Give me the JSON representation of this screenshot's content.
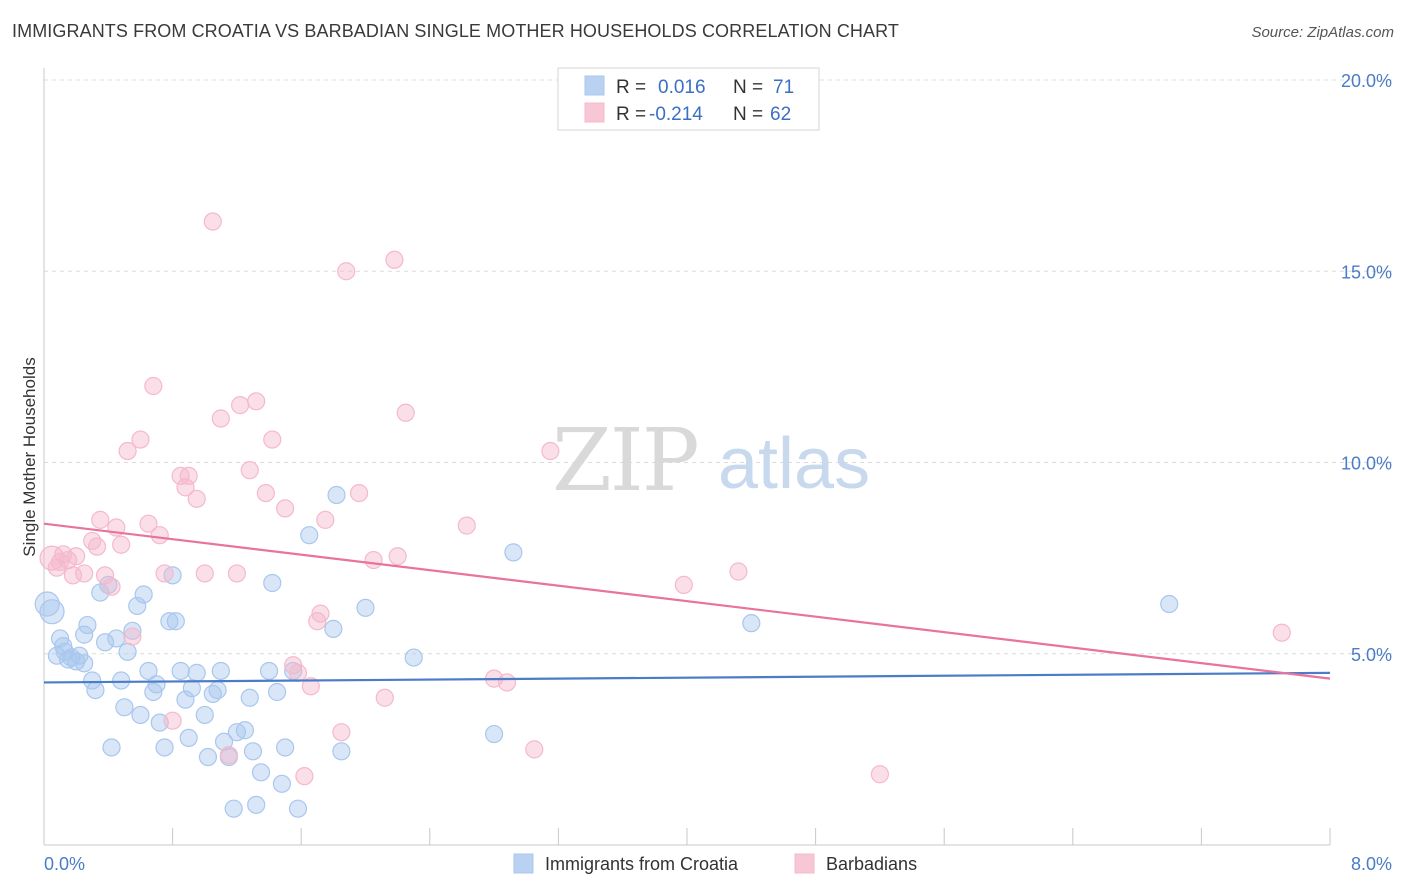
{
  "header": {
    "title": "IMMIGRANTS FROM CROATIA VS BARBADIAN SINGLE MOTHER HOUSEHOLDS CORRELATION CHART",
    "source": "Source: ZipAtlas.com"
  },
  "watermark": {
    "zip": "ZIP",
    "atlas": "atlas"
  },
  "legend": {
    "rows": [
      {
        "r_label": "R =",
        "r_value": "0.016",
        "n_label": "N =",
        "n_value": "71",
        "color": "#a9c7ee"
      },
      {
        "r_label": "R =",
        "r_value": "-0.214",
        "n_label": "N =",
        "n_value": "62",
        "color": "#f5b9cb"
      }
    ]
  },
  "bottom_legend": {
    "items": [
      {
        "label": "Immigrants from Croatia",
        "color": "#a9c7ee"
      },
      {
        "label": "Barbadians",
        "color": "#f5b9cb"
      }
    ]
  },
  "chart_data": {
    "type": "scatter",
    "title": "IMMIGRANTS FROM CROATIA VS BARBADIAN SINGLE MOTHER HOUSEHOLDS CORRELATION CHART",
    "xlabel": "",
    "ylabel": "Single Mother Households",
    "xlim": [
      0,
      8
    ],
    "ylim": [
      0,
      20
    ],
    "x_tick_labels": [
      "0.0%",
      "8.0%"
    ],
    "y_ticks": [
      5,
      10,
      15,
      20
    ],
    "y_tick_labels": [
      "5.0%",
      "10.0%",
      "15.0%",
      "20.0%"
    ],
    "grid": true,
    "legend_position": "top-center",
    "series": [
      {
        "name": "Immigrants from Croatia",
        "color": "#4a7cc7",
        "fill": "#a9c7ee",
        "r": 0.016,
        "n": 71,
        "trend": {
          "x": [
            0,
            8
          ],
          "y": [
            4.25,
            4.5
          ]
        },
        "points": [
          [
            0.02,
            6.3
          ],
          [
            0.05,
            6.1
          ],
          [
            0.08,
            4.95
          ],
          [
            0.1,
            5.4
          ],
          [
            0.12,
            5.2
          ],
          [
            0.13,
            5.05
          ],
          [
            0.15,
            4.85
          ],
          [
            0.17,
            4.9
          ],
          [
            0.2,
            4.8
          ],
          [
            0.22,
            4.95
          ],
          [
            0.25,
            5.5
          ],
          [
            0.27,
            5.75
          ],
          [
            0.3,
            4.3
          ],
          [
            0.32,
            4.05
          ],
          [
            0.35,
            6.6
          ],
          [
            0.38,
            5.3
          ],
          [
            0.4,
            6.8
          ],
          [
            0.45,
            5.4
          ],
          [
            0.48,
            4.3
          ],
          [
            0.5,
            3.6
          ],
          [
            0.52,
            5.05
          ],
          [
            0.55,
            5.6
          ],
          [
            0.58,
            6.25
          ],
          [
            0.6,
            3.4
          ],
          [
            0.62,
            6.55
          ],
          [
            0.65,
            4.55
          ],
          [
            0.68,
            4.0
          ],
          [
            0.7,
            4.2
          ],
          [
            0.72,
            3.2
          ],
          [
            0.75,
            2.55
          ],
          [
            0.78,
            5.85
          ],
          [
            0.8,
            7.05
          ],
          [
            0.82,
            5.85
          ],
          [
            0.85,
            4.55
          ],
          [
            0.88,
            3.8
          ],
          [
            0.9,
            2.8
          ],
          [
            0.92,
            4.1
          ],
          [
            0.95,
            4.5
          ],
          [
            1.0,
            3.4
          ],
          [
            1.02,
            2.3
          ],
          [
            1.05,
            3.95
          ],
          [
            1.08,
            4.05
          ],
          [
            1.1,
            4.55
          ],
          [
            1.12,
            2.7
          ],
          [
            1.15,
            2.3
          ],
          [
            1.18,
            0.95
          ],
          [
            1.2,
            2.95
          ],
          [
            1.25,
            3.0
          ],
          [
            1.28,
            3.85
          ],
          [
            1.3,
            2.45
          ],
          [
            1.32,
            1.05
          ],
          [
            1.35,
            1.9
          ],
          [
            1.4,
            4.55
          ],
          [
            1.42,
            6.85
          ],
          [
            1.45,
            4.0
          ],
          [
            1.48,
            1.6
          ],
          [
            1.5,
            2.55
          ],
          [
            1.55,
            4.55
          ],
          [
            1.58,
            0.95
          ],
          [
            1.65,
            8.1
          ],
          [
            1.8,
            5.65
          ],
          [
            1.82,
            9.15
          ],
          [
            1.85,
            2.45
          ],
          [
            2.0,
            6.2
          ],
          [
            2.3,
            4.9
          ],
          [
            2.8,
            2.9
          ],
          [
            2.92,
            7.65
          ],
          [
            4.4,
            5.8
          ],
          [
            7.0,
            6.3
          ],
          [
            0.25,
            4.75
          ],
          [
            0.42,
            2.55
          ]
        ]
      },
      {
        "name": "Barbadians",
        "color": "#e8739c",
        "fill": "#f5b9cb",
        "r": -0.214,
        "n": 62,
        "trend": {
          "x": [
            0,
            8
          ],
          "y": [
            8.4,
            4.35
          ]
        },
        "points": [
          [
            0.05,
            7.5
          ],
          [
            0.08,
            7.25
          ],
          [
            0.1,
            7.4
          ],
          [
            0.12,
            7.6
          ],
          [
            0.15,
            7.45
          ],
          [
            0.18,
            7.05
          ],
          [
            0.2,
            7.55
          ],
          [
            0.25,
            7.1
          ],
          [
            0.3,
            7.95
          ],
          [
            0.33,
            7.8
          ],
          [
            0.35,
            8.5
          ],
          [
            0.38,
            7.05
          ],
          [
            0.42,
            6.75
          ],
          [
            0.45,
            8.3
          ],
          [
            0.48,
            7.85
          ],
          [
            0.52,
            10.3
          ],
          [
            0.55,
            5.45
          ],
          [
            0.6,
            10.6
          ],
          [
            0.65,
            8.4
          ],
          [
            0.68,
            12.0
          ],
          [
            0.72,
            8.1
          ],
          [
            0.75,
            7.1
          ],
          [
            0.8,
            3.25
          ],
          [
            0.85,
            9.65
          ],
          [
            0.88,
            9.35
          ],
          [
            0.9,
            9.65
          ],
          [
            0.95,
            9.05
          ],
          [
            1.0,
            7.1
          ],
          [
            1.05,
            16.3
          ],
          [
            1.1,
            11.15
          ],
          [
            1.15,
            2.35
          ],
          [
            1.2,
            7.1
          ],
          [
            1.22,
            11.5
          ],
          [
            1.28,
            9.8
          ],
          [
            1.32,
            11.6
          ],
          [
            1.38,
            9.2
          ],
          [
            1.42,
            10.6
          ],
          [
            1.5,
            8.8
          ],
          [
            1.55,
            4.7
          ],
          [
            1.58,
            4.5
          ],
          [
            1.62,
            1.8
          ],
          [
            1.66,
            4.15
          ],
          [
            1.7,
            5.85
          ],
          [
            1.72,
            6.05
          ],
          [
            1.75,
            8.5
          ],
          [
            1.85,
            2.95
          ],
          [
            1.88,
            15.0
          ],
          [
            1.96,
            9.2
          ],
          [
            2.05,
            7.45
          ],
          [
            2.12,
            3.85
          ],
          [
            2.18,
            15.3
          ],
          [
            2.2,
            7.55
          ],
          [
            2.25,
            11.3
          ],
          [
            2.63,
            8.35
          ],
          [
            2.8,
            4.35
          ],
          [
            2.88,
            4.25
          ],
          [
            3.05,
            2.5
          ],
          [
            3.15,
            10.3
          ],
          [
            3.98,
            6.8
          ],
          [
            4.32,
            7.15
          ],
          [
            5.2,
            1.85
          ],
          [
            7.7,
            5.55
          ]
        ]
      }
    ]
  }
}
